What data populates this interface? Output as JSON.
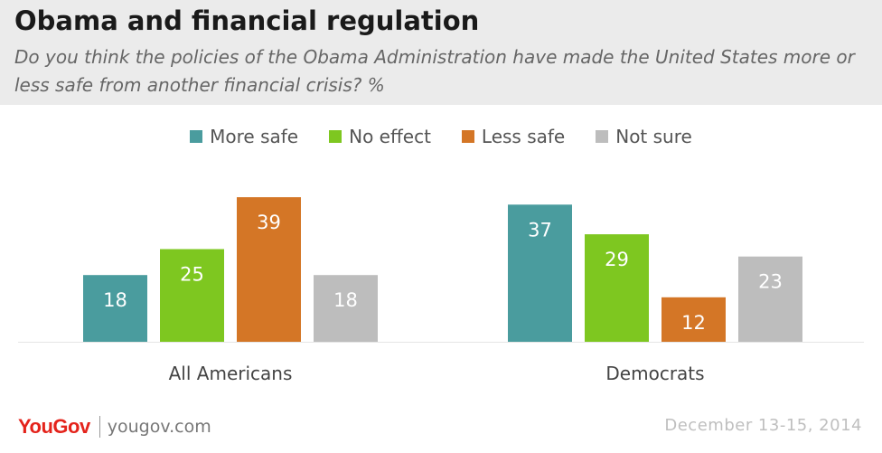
{
  "header": {
    "title": "Obama and financial regulation",
    "subtitle": "Do you think the policies of the Obama Administration have made the United States more or less safe from another financial crisis? %"
  },
  "footer": {
    "logo_you": "You",
    "logo_gov": "Gov",
    "site": "yougov.com",
    "date": "December 13-15, 2014"
  },
  "chart_data": {
    "type": "bar",
    "categories": [
      "All Americans",
      "Democrats"
    ],
    "series": [
      {
        "name": "More safe",
        "color": "#4a9c9e",
        "values": [
          18,
          37
        ]
      },
      {
        "name": "No effect",
        "color": "#7ec720",
        "values": [
          25,
          29
        ]
      },
      {
        "name": "Less safe",
        "color": "#d47626",
        "values": [
          39,
          12
        ]
      },
      {
        "name": "Not sure",
        "color": "#bdbdbd",
        "values": [
          18,
          23
        ]
      }
    ],
    "ylim": [
      0,
      40
    ],
    "legend": "top-center",
    "grid": false
  }
}
